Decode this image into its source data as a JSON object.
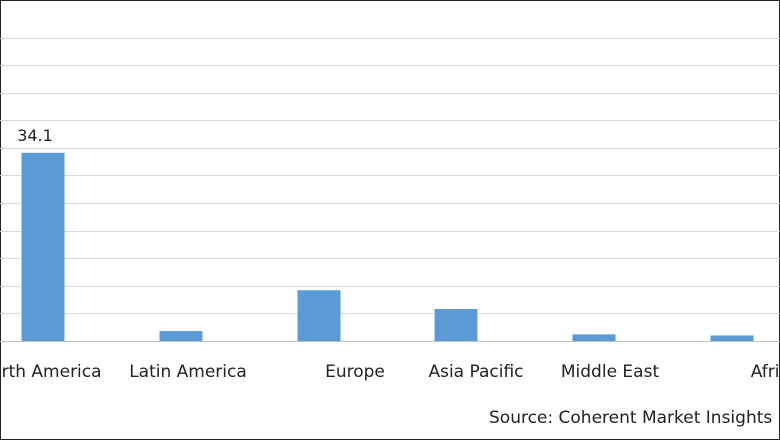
{
  "chart_data": {
    "type": "bar",
    "categories": [
      "North America",
      "Latin America",
      "Europe",
      "Asia Pacific",
      "Middle East",
      "Africa"
    ],
    "values": [
      34.1,
      1.8,
      9.2,
      5.8,
      1.2,
      1.0
    ],
    "data_labels": [
      "34.1",
      "",
      "",
      "",
      "",
      ""
    ],
    "ylim": [
      0,
      55
    ],
    "grid": true,
    "bar_color": "#5b9bd5",
    "gridline_color": "#d9d9d9"
  },
  "source": "Source: Coherent Market Insights"
}
